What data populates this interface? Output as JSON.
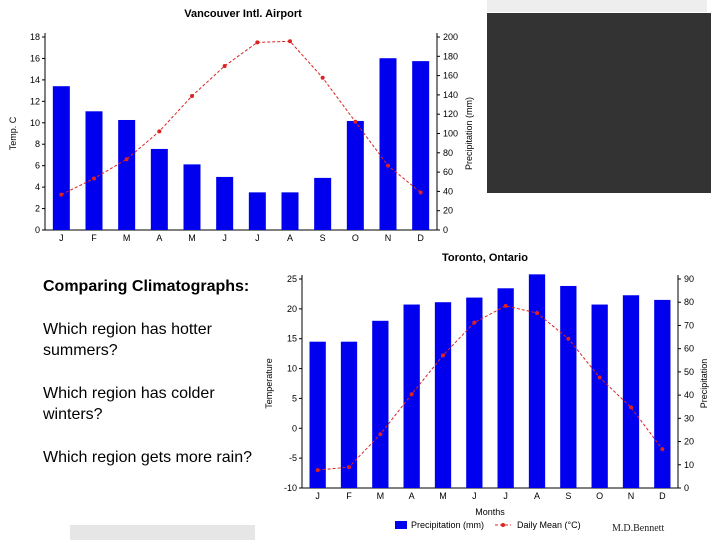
{
  "text_panel": {
    "heading": "Comparing Climatographs:",
    "questions": [
      "Which region  has hotter summers?",
      "Which region has colder winters?",
      "Which region gets more rain?"
    ]
  },
  "credit": "M.D.Bennett",
  "colors": {
    "bar": "#0000ee",
    "line": "#dd2222",
    "dark_panel": "#333333",
    "axis": "#000000"
  },
  "chart_data": [
    {
      "type": "bar",
      "title": "Vancouver Intl. Airport",
      "categories": [
        "J",
        "F",
        "M",
        "A",
        "M",
        "J",
        "J",
        "A",
        "S",
        "O",
        "N",
        "D"
      ],
      "left_ticks": [
        "0",
        "2",
        "4",
        "6",
        "8",
        "10",
        "12",
        "14",
        "16",
        "18"
      ],
      "right_ticks": [
        "0",
        "20",
        "40",
        "60",
        "80",
        "100",
        "120",
        "140",
        "160",
        "180",
        "200"
      ],
      "ylabel_left": "Temp. C",
      "ylabel_right": "Precipitation (mm)",
      "series": [
        {
          "name": "Precipitation",
          "kind": "bar",
          "axis": "right",
          "ylim": [
            0,
            200
          ],
          "values": [
            149,
            123,
            114,
            84,
            68,
            55,
            39,
            39,
            54,
            113,
            178,
            175
          ]
        },
        {
          "name": "Temperature",
          "kind": "line",
          "axis": "left",
          "ylim": [
            0,
            18
          ],
          "values": [
            3.3,
            4.8,
            6.6,
            9.2,
            12.5,
            15.3,
            17.5,
            17.6,
            14.2,
            10.1,
            6.0,
            3.5
          ]
        }
      ]
    },
    {
      "type": "bar",
      "title": "Toronto, Ontario",
      "xlabel": "Months",
      "categories": [
        "J",
        "F",
        "M",
        "A",
        "M",
        "J",
        "J",
        "A",
        "S",
        "O",
        "N",
        "D"
      ],
      "left_ticks": [
        "-10",
        "-5",
        "0",
        "5",
        "10",
        "15",
        "20",
        "25"
      ],
      "right_ticks": [
        "0",
        "10",
        "20",
        "30",
        "40",
        "50",
        "60",
        "70",
        "80",
        "90"
      ],
      "ylabel_left": "Temperature",
      "ylabel_right": "Precipitation",
      "legend": [
        "Precipitation (mm)",
        "Daily Mean (°C)"
      ],
      "series": [
        {
          "name": "Precipitation (mm)",
          "kind": "bar",
          "axis": "right",
          "ylim": [
            0,
            90
          ],
          "values": [
            63,
            63,
            72,
            79,
            80,
            82,
            86,
            92,
            87,
            79,
            83,
            81
          ]
        },
        {
          "name": "Daily Mean (°C)",
          "kind": "line",
          "axis": "left",
          "ylim": [
            -10,
            25
          ],
          "values": [
            -7,
            -6.5,
            -1,
            5.7,
            12.2,
            17.7,
            20.5,
            19.3,
            15.0,
            8.5,
            3.5,
            -3.5
          ]
        }
      ]
    }
  ]
}
